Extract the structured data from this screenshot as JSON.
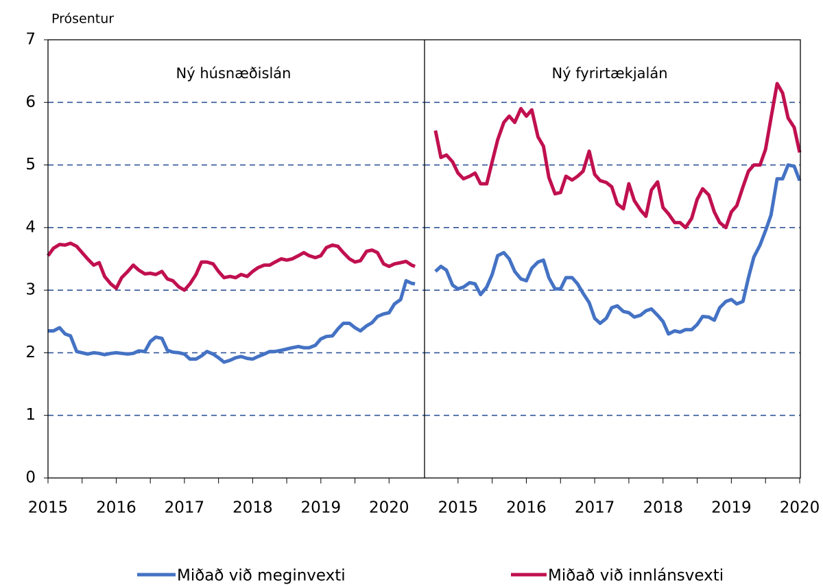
{
  "chart_data": [
    {
      "type": "line",
      "ylabel": "Prósentur",
      "annotation": "Ný húsnæðislán",
      "xlim": [
        2015,
        2020.52
      ],
      "xticks": [
        2015,
        2016,
        2017,
        2018,
        2019,
        2020
      ],
      "ylim": [
        0,
        7
      ],
      "yticks": [
        0,
        1,
        2,
        3,
        4,
        5,
        6,
        7
      ],
      "grid": true,
      "x": [
        2015.0,
        2015.08,
        2015.17,
        2015.25,
        2015.33,
        2015.42,
        2015.5,
        2015.58,
        2015.67,
        2015.75,
        2015.83,
        2015.92,
        2016.0,
        2016.08,
        2016.17,
        2016.25,
        2016.33,
        2016.42,
        2016.5,
        2016.58,
        2016.67,
        2016.75,
        2016.83,
        2016.92,
        2017.0,
        2017.08,
        2017.17,
        2017.25,
        2017.33,
        2017.42,
        2017.5,
        2017.58,
        2017.67,
        2017.75,
        2017.83,
        2017.92,
        2018.0,
        2018.08,
        2018.17,
        2018.25,
        2018.33,
        2018.42,
        2018.5,
        2018.58,
        2018.67,
        2018.75,
        2018.83,
        2018.92,
        2019.0,
        2019.08,
        2019.17,
        2019.25,
        2019.33,
        2019.42,
        2019.5,
        2019.58,
        2019.67,
        2019.75,
        2019.83,
        2019.92,
        2020.0,
        2020.08,
        2020.17,
        2020.25,
        2020.33,
        2020.38
      ],
      "series": [
        {
          "name": "Miðað við meginvexti",
          "color": "#4472c4",
          "values": [
            2.35,
            2.35,
            2.4,
            2.3,
            2.27,
            2.02,
            2.0,
            1.98,
            2.0,
            1.99,
            1.97,
            1.99,
            2.0,
            1.99,
            1.98,
            1.99,
            2.03,
            2.02,
            2.18,
            2.25,
            2.23,
            2.04,
            2.01,
            2.0,
            1.98,
            1.9,
            1.9,
            1.95,
            2.02,
            1.98,
            1.92,
            1.85,
            1.88,
            1.92,
            1.94,
            1.91,
            1.9,
            1.94,
            1.98,
            2.02,
            2.02,
            2.04,
            2.06,
            2.08,
            2.1,
            2.08,
            2.08,
            2.12,
            2.22,
            2.26,
            2.27,
            2.38,
            2.47,
            2.47,
            2.4,
            2.35,
            2.43,
            2.48,
            2.58,
            2.62,
            2.64,
            2.78,
            2.85,
            3.15,
            3.11,
            3.1
          ]
        },
        {
          "name": "Miðað við innlánsvexti",
          "color": "#c0104f",
          "values": [
            3.55,
            3.67,
            3.73,
            3.72,
            3.75,
            3.7,
            3.6,
            3.5,
            3.4,
            3.44,
            3.22,
            3.1,
            3.03,
            3.2,
            3.3,
            3.4,
            3.32,
            3.26,
            3.27,
            3.25,
            3.3,
            3.18,
            3.15,
            3.05,
            3.0,
            3.1,
            3.25,
            3.45,
            3.45,
            3.42,
            3.3,
            3.2,
            3.22,
            3.2,
            3.25,
            3.22,
            3.3,
            3.36,
            3.4,
            3.4,
            3.45,
            3.5,
            3.48,
            3.5,
            3.55,
            3.6,
            3.55,
            3.52,
            3.55,
            3.68,
            3.72,
            3.7,
            3.6,
            3.5,
            3.45,
            3.47,
            3.62,
            3.64,
            3.6,
            3.42,
            3.38,
            3.42,
            3.44,
            3.46,
            3.4,
            3.38
          ]
        }
      ]
    },
    {
      "type": "line",
      "annotation": "Ný fyrirtækjalán",
      "xlim": [
        2014.51,
        2020.01
      ],
      "xticks": [
        2015,
        2016,
        2017,
        2018,
        2019,
        2020
      ],
      "ylim": [
        0,
        7
      ],
      "yticks": [
        0,
        1,
        2,
        3,
        4,
        5,
        6,
        7
      ],
      "grid": true,
      "x": [
        2014.67,
        2014.75,
        2014.83,
        2014.92,
        2015.0,
        2015.08,
        2015.17,
        2015.25,
        2015.33,
        2015.42,
        2015.5,
        2015.58,
        2015.67,
        2015.75,
        2015.83,
        2015.92,
        2016.0,
        2016.08,
        2016.17,
        2016.25,
        2016.33,
        2016.42,
        2016.5,
        2016.58,
        2016.67,
        2016.75,
        2016.83,
        2016.92,
        2017.0,
        2017.08,
        2017.17,
        2017.25,
        2017.33,
        2017.42,
        2017.5,
        2017.58,
        2017.67,
        2017.75,
        2017.83,
        2017.92,
        2018.0,
        2018.08,
        2018.17,
        2018.25,
        2018.33,
        2018.42,
        2018.5,
        2018.58,
        2018.67,
        2018.75,
        2018.83,
        2018.92,
        2019.0,
        2019.08,
        2019.17,
        2019.25,
        2019.33,
        2019.42,
        2019.5,
        2019.58,
        2019.67,
        2019.75,
        2019.83,
        2019.92,
        2020.0
      ],
      "series": [
        {
          "color": "#4472c4",
          "values": [
            3.3,
            3.38,
            3.32,
            3.08,
            3.02,
            3.05,
            3.12,
            3.1,
            2.93,
            3.05,
            3.25,
            3.55,
            3.6,
            3.5,
            3.3,
            3.18,
            3.15,
            3.35,
            3.45,
            3.48,
            3.2,
            3.02,
            3.02,
            3.2,
            3.2,
            3.1,
            2.95,
            2.8,
            2.55,
            2.47,
            2.55,
            2.72,
            2.75,
            2.66,
            2.64,
            2.57,
            2.6,
            2.67,
            2.7,
            2.6,
            2.5,
            2.3,
            2.35,
            2.33,
            2.37,
            2.37,
            2.45,
            2.58,
            2.57,
            2.52,
            2.72,
            2.82,
            2.85,
            2.78,
            2.82,
            3.2,
            3.53,
            3.72,
            3.95,
            4.2,
            4.78,
            4.78,
            5.0,
            4.98,
            4.75
          ]
        },
        {
          "color": "#c0104f",
          "values": [
            5.55,
            5.12,
            5.16,
            5.05,
            4.87,
            4.78,
            4.82,
            4.87,
            4.7,
            4.7,
            5.05,
            5.4,
            5.68,
            5.78,
            5.68,
            5.9,
            5.78,
            5.88,
            5.45,
            5.3,
            4.8,
            4.54,
            4.56,
            4.82,
            4.76,
            4.82,
            4.9,
            5.22,
            4.85,
            4.75,
            4.72,
            4.65,
            4.38,
            4.3,
            4.7,
            4.43,
            4.28,
            4.18,
            4.6,
            4.73,
            4.32,
            4.22,
            4.08,
            4.08,
            4.0,
            4.15,
            4.45,
            4.62,
            4.52,
            4.25,
            4.08,
            4.0,
            4.25,
            4.35,
            4.65,
            4.9,
            5.0,
            5.0,
            5.25,
            5.75,
            6.3,
            6.15,
            5.75,
            5.6,
            5.2
          ]
        }
      ]
    }
  ]
}
